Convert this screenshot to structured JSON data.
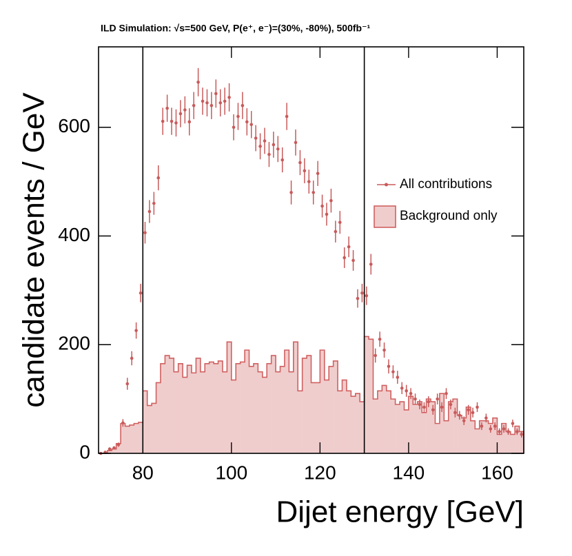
{
  "chart_data": {
    "type": "histogram",
    "title": "ILD Simulation:  √s=500 GeV, P(e⁺, e⁻)=(30%, -80%), 500fb⁻¹",
    "x_label": "Dijet energy [GeV]",
    "y_label": "candidate events / GeV",
    "xlim": [
      70,
      166
    ],
    "ylim": [
      0,
      748
    ],
    "xticks": [
      80,
      100,
      120,
      140,
      160
    ],
    "yticks": [
      0,
      200,
      400,
      600
    ],
    "vlines": [
      80,
      130
    ],
    "legend": "right",
    "bins": [
      70,
      71,
      72,
      73,
      74,
      75,
      76,
      77,
      78,
      79,
      80,
      81,
      82,
      83,
      84,
      85,
      86,
      87,
      88,
      89,
      90,
      91,
      92,
      93,
      94,
      95,
      96,
      97,
      98,
      99,
      100,
      101,
      102,
      103,
      104,
      105,
      106,
      107,
      108,
      109,
      110,
      111,
      112,
      113,
      114,
      115,
      116,
      117,
      118,
      119,
      120,
      121,
      122,
      123,
      124,
      125,
      126,
      127,
      128,
      129,
      130,
      131,
      132,
      133,
      134,
      135,
      136,
      137,
      138,
      139,
      140,
      141,
      142,
      143,
      144,
      145,
      146,
      147,
      148,
      149,
      150,
      151,
      152,
      153,
      154,
      155,
      156,
      157,
      158,
      159,
      160,
      161,
      162,
      163,
      164,
      165,
      166
    ],
    "series": [
      {
        "name": "All contributions",
        "color": "#c85a5a",
        "style": "points",
        "values": [
          0,
          2,
          8,
          10,
          16,
          56,
          128,
          175,
          226,
          295,
          406,
          445,
          460,
          507,
          611,
          635,
          611,
          608,
          625,
          632,
          610,
          640,
          683,
          648,
          645,
          640,
          662,
          645,
          648,
          655,
          600,
          620,
          640,
          610,
          605,
          580,
          565,
          575,
          550,
          568,
          560,
          540,
          620,
          480,
          572,
          535,
          520,
          500,
          480,
          515,
          455,
          440,
          465,
          408,
          425,
          360,
          380,
          355,
          285,
          295,
          290,
          348,
          180,
          210,
          190,
          160,
          150,
          140,
          120,
          115,
          110,
          100,
          90,
          85,
          95,
          80,
          100,
          85,
          110,
          90,
          75,
          70,
          60,
          80,
          75,
          85,
          50,
          65,
          45,
          50,
          40,
          45,
          40,
          55,
          40,
          35
        ],
        "errors": [
          0,
          1,
          3,
          3,
          4,
          7,
          11,
          13,
          15,
          17,
          20,
          21,
          21,
          23,
          25,
          25,
          25,
          25,
          25,
          25,
          25,
          25,
          26,
          25,
          25,
          25,
          26,
          25,
          25,
          26,
          24,
          25,
          25,
          25,
          25,
          24,
          24,
          24,
          23,
          24,
          24,
          23,
          25,
          22,
          24,
          23,
          23,
          22,
          22,
          23,
          21,
          21,
          22,
          20,
          21,
          19,
          19,
          19,
          17,
          17,
          17,
          19,
          13,
          14,
          14,
          13,
          12,
          12,
          11,
          11,
          10,
          10,
          9,
          9,
          10,
          9,
          10,
          9,
          10,
          9,
          9,
          8,
          8,
          9,
          9,
          9,
          7,
          8,
          7,
          7,
          6,
          7,
          6,
          7,
          6,
          6
        ]
      },
      {
        "name": "Background only",
        "color": "#d06060",
        "fill": "#f0cdcd",
        "style": "step",
        "values": [
          0,
          0,
          5,
          8,
          18,
          55,
          50,
          52,
          55,
          57,
          115,
          88,
          92,
          130,
          165,
          180,
          175,
          150,
          165,
          140,
          162,
          148,
          175,
          150,
          165,
          168,
          165,
          170,
          150,
          205,
          135,
          165,
          168,
          190,
          160,
          165,
          150,
          140,
          165,
          180,
          150,
          160,
          190,
          150,
          205,
          115,
          175,
          180,
          130,
          130,
          190,
          135,
          160,
          170,
          115,
          135,
          115,
          105,
          110,
          95,
          215,
          210,
          100,
          115,
          125,
          115,
          100,
          90,
          95,
          80,
          105,
          90,
          95,
          75,
          100,
          95,
          55,
          110,
          60,
          95,
          100,
          70,
          65,
          85,
          60,
          45,
          60,
          60,
          55,
          65,
          35,
          55,
          40,
          35,
          50,
          40
        ]
      }
    ]
  }
}
